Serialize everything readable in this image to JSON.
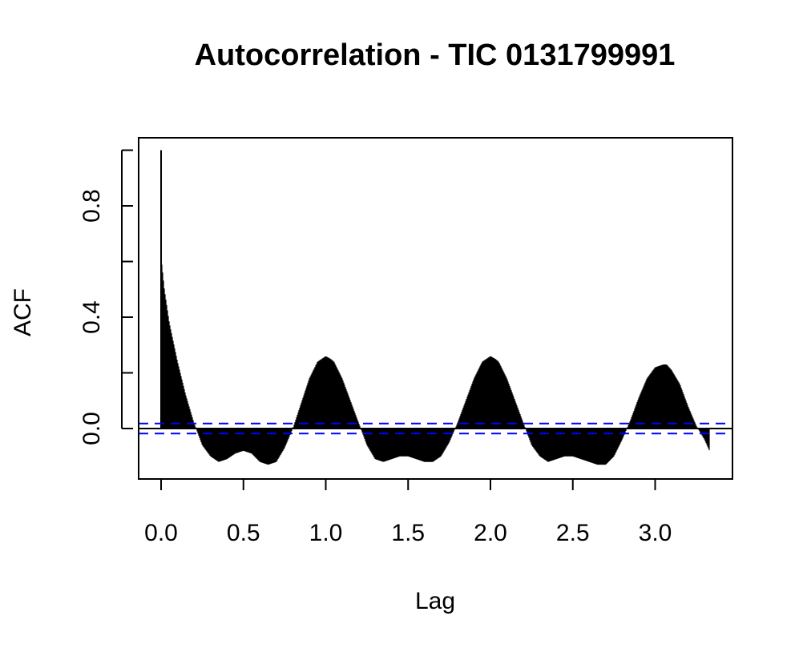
{
  "chart_data": {
    "type": "bar",
    "title": "Autocorrelation - TIC 0131799991",
    "xlabel": "Lag",
    "ylabel": "ACF",
    "xlim": [
      -0.13,
      3.48
    ],
    "ylim": [
      -0.18,
      1.0
    ],
    "x_ticks": [
      "0.0",
      "0.5",
      "1.0",
      "1.5",
      "2.0",
      "2.5",
      "3.0"
    ],
    "y_ticks": [
      "0.0",
      "0.4",
      "0.8"
    ],
    "confidence_band": {
      "upper": 0.018,
      "lower": -0.018,
      "color": "#0000ff",
      "style": "dashed"
    },
    "zero_line": true,
    "grid": false,
    "bar_color": "#000000",
    "curve": {
      "description_points_x": [
        0.0,
        0.003,
        0.02,
        0.05,
        0.1,
        0.15,
        0.2,
        0.25,
        0.3,
        0.35,
        0.4,
        0.45,
        0.5,
        0.55,
        0.6,
        0.65,
        0.7,
        0.75,
        0.8,
        0.85,
        0.9,
        0.95,
        1.0,
        1.03,
        1.05,
        1.1,
        1.15,
        1.2,
        1.25,
        1.3,
        1.35,
        1.4,
        1.45,
        1.5,
        1.55,
        1.6,
        1.65,
        1.7,
        1.75,
        1.8,
        1.85,
        1.9,
        1.95,
        2.0,
        2.03,
        2.05,
        2.1,
        2.15,
        2.2,
        2.25,
        2.3,
        2.35,
        2.4,
        2.45,
        2.5,
        2.55,
        2.6,
        2.65,
        2.7,
        2.75,
        2.8,
        2.85,
        2.9,
        2.95,
        3.0,
        3.05,
        3.07,
        3.1,
        3.15,
        3.2,
        3.25,
        3.3,
        3.33
      ],
      "description_points_y": [
        1.0,
        0.6,
        0.5,
        0.38,
        0.24,
        0.12,
        0.02,
        -0.06,
        -0.1,
        -0.12,
        -0.11,
        -0.09,
        -0.08,
        -0.09,
        -0.12,
        -0.13,
        -0.12,
        -0.07,
        0.0,
        0.09,
        0.18,
        0.24,
        0.26,
        0.25,
        0.24,
        0.18,
        0.1,
        0.02,
        -0.06,
        -0.11,
        -0.12,
        -0.11,
        -0.1,
        -0.1,
        -0.11,
        -0.12,
        -0.12,
        -0.1,
        -0.05,
        0.02,
        0.1,
        0.18,
        0.24,
        0.26,
        0.25,
        0.24,
        0.18,
        0.1,
        0.02,
        -0.06,
        -0.1,
        -0.12,
        -0.11,
        -0.1,
        -0.1,
        -0.11,
        -0.12,
        -0.13,
        -0.13,
        -0.1,
        -0.04,
        0.03,
        0.11,
        0.18,
        0.22,
        0.23,
        0.23,
        0.21,
        0.16,
        0.08,
        0.01,
        -0.04,
        -0.08
      ]
    }
  }
}
